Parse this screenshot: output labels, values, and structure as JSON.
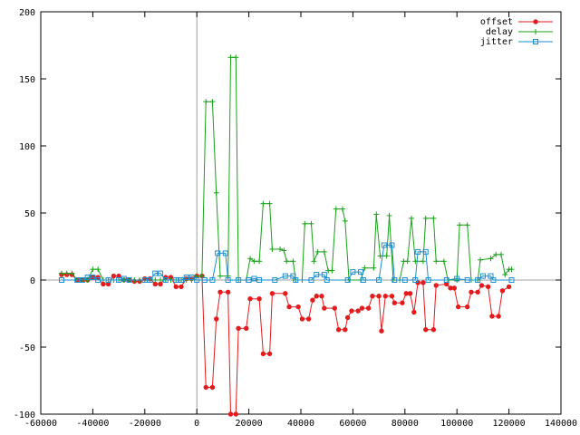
{
  "chart_data": {
    "type": "line",
    "xlim": [
      -60000,
      140000
    ],
    "ylim": [
      -100,
      200
    ],
    "x_ticks": [
      -60000,
      -40000,
      -20000,
      0,
      20000,
      40000,
      60000,
      80000,
      100000,
      120000,
      140000
    ],
    "y_ticks": [
      -100,
      -50,
      0,
      50,
      100,
      150,
      200
    ],
    "x_tick_labels": [
      "-60000",
      "-40000",
      "-20000",
      "0",
      "20000",
      "40000",
      "60000",
      "80000",
      "100000",
      "120000",
      "140000"
    ],
    "y_tick_labels": [
      "-100",
      "-50",
      "0",
      "50",
      "100",
      "150",
      "200"
    ],
    "zero_lines": true,
    "legend_position": "top-right",
    "series": [
      {
        "name": "offset",
        "color": "#e41a1c",
        "marker": "dot",
        "points": [
          [
            -52000,
            4
          ],
          [
            -50000,
            4
          ],
          [
            -48000,
            4
          ],
          [
            -46000,
            0
          ],
          [
            -44000,
            0
          ],
          [
            -42000,
            0
          ],
          [
            -40000,
            2
          ],
          [
            -38000,
            2
          ],
          [
            -36000,
            -3
          ],
          [
            -34000,
            -3
          ],
          [
            -32000,
            3
          ],
          [
            -30000,
            3
          ],
          [
            -28000,
            0
          ],
          [
            -26000,
            0
          ],
          [
            -24000,
            -1
          ],
          [
            -22000,
            -1
          ],
          [
            -20000,
            1
          ],
          [
            -18000,
            1
          ],
          [
            -16000,
            -3
          ],
          [
            -14000,
            -3
          ],
          [
            -12000,
            2
          ],
          [
            -10000,
            2
          ],
          [
            -8000,
            -5
          ],
          [
            -6000,
            -5
          ],
          [
            -4000,
            1
          ],
          [
            -2000,
            1
          ],
          [
            0,
            3
          ],
          [
            2000,
            3
          ],
          [
            3500,
            -80
          ],
          [
            6000,
            -80
          ],
          [
            7500,
            -29
          ],
          [
            9000,
            -9
          ],
          [
            12000,
            -9
          ],
          [
            13000,
            -100
          ],
          [
            15000,
            -100
          ],
          [
            16000,
            -36
          ],
          [
            19000,
            -36
          ],
          [
            20500,
            -14
          ],
          [
            24000,
            -14
          ],
          [
            25500,
            -55
          ],
          [
            28000,
            -55
          ],
          [
            29000,
            -10
          ],
          [
            34000,
            -10
          ],
          [
            35500,
            -20
          ],
          [
            39000,
            -20
          ],
          [
            40500,
            -29
          ],
          [
            43000,
            -29
          ],
          [
            44500,
            -15
          ],
          [
            46000,
            -12
          ],
          [
            48000,
            -12
          ],
          [
            49000,
            -21
          ],
          [
            53000,
            -21
          ],
          [
            54500,
            -37
          ],
          [
            57000,
            -37
          ],
          [
            58000,
            -28
          ],
          [
            59500,
            -23
          ],
          [
            62000,
            -23
          ],
          [
            63500,
            -21
          ],
          [
            66000,
            -21
          ],
          [
            67500,
            -12
          ],
          [
            70000,
            -12
          ],
          [
            71000,
            -38
          ],
          [
            72500,
            -12
          ],
          [
            75000,
            -12
          ],
          [
            76000,
            -17
          ],
          [
            79000,
            -17
          ],
          [
            80500,
            -10
          ],
          [
            82000,
            -10
          ],
          [
            83500,
            -24
          ],
          [
            85000,
            -2
          ],
          [
            87000,
            -2
          ],
          [
            88000,
            -37
          ],
          [
            91000,
            -37
          ],
          [
            92000,
            -4
          ],
          [
            96000,
            -3
          ],
          [
            97500,
            -6
          ],
          [
            99000,
            -6
          ],
          [
            100500,
            -20
          ],
          [
            104000,
            -20
          ],
          [
            105500,
            -9
          ],
          [
            108000,
            -9
          ],
          [
            109500,
            -4
          ],
          [
            112000,
            -5
          ],
          [
            113500,
            -27
          ],
          [
            116000,
            -27
          ],
          [
            117500,
            -8
          ],
          [
            120000,
            -5
          ]
        ]
      },
      {
        "name": "delay",
        "color": "#1aa11a",
        "marker": "plus",
        "points": [
          [
            -52000,
            5
          ],
          [
            -50000,
            5
          ],
          [
            -48000,
            5
          ],
          [
            -46000,
            0
          ],
          [
            -44000,
            0
          ],
          [
            -42000,
            0
          ],
          [
            -40000,
            8
          ],
          [
            -38000,
            8
          ],
          [
            -36000,
            0
          ],
          [
            -34000,
            0
          ],
          [
            -32000,
            0
          ],
          [
            -30000,
            0
          ],
          [
            -28000,
            0
          ],
          [
            -26000,
            0
          ],
          [
            -24000,
            0
          ],
          [
            -22000,
            0
          ],
          [
            -20000,
            0
          ],
          [
            -18000,
            0
          ],
          [
            -16000,
            0
          ],
          [
            -14000,
            0
          ],
          [
            -12000,
            0
          ],
          [
            -10000,
            0
          ],
          [
            -8000,
            0
          ],
          [
            -6000,
            0
          ],
          [
            -4000,
            0
          ],
          [
            -2000,
            0
          ],
          [
            0,
            3
          ],
          [
            2000,
            3
          ],
          [
            3500,
            133
          ],
          [
            6000,
            133
          ],
          [
            7500,
            65
          ],
          [
            9000,
            3
          ],
          [
            12000,
            3
          ],
          [
            13000,
            166
          ],
          [
            15000,
            166
          ],
          [
            16000,
            0
          ],
          [
            19000,
            0
          ],
          [
            20500,
            16
          ],
          [
            22000,
            14
          ],
          [
            24000,
            14
          ],
          [
            25500,
            57
          ],
          [
            28000,
            57
          ],
          [
            29000,
            23
          ],
          [
            32000,
            23
          ],
          [
            33500,
            22
          ],
          [
            34500,
            14
          ],
          [
            37000,
            14
          ],
          [
            38000,
            0
          ],
          [
            40500,
            0
          ],
          [
            41500,
            42
          ],
          [
            44000,
            42
          ],
          [
            45000,
            14
          ],
          [
            46500,
            21
          ],
          [
            49000,
            21
          ],
          [
            50500,
            7
          ],
          [
            52000,
            7
          ],
          [
            53500,
            53
          ],
          [
            56000,
            53
          ],
          [
            57000,
            44
          ],
          [
            58500,
            0
          ],
          [
            63000,
            0
          ],
          [
            64500,
            9
          ],
          [
            68000,
            9
          ],
          [
            69000,
            49
          ],
          [
            70500,
            18
          ],
          [
            73000,
            18
          ],
          [
            74000,
            48
          ],
          [
            75500,
            0
          ],
          [
            78000,
            0
          ],
          [
            79500,
            14
          ],
          [
            81000,
            14
          ],
          [
            82500,
            46
          ],
          [
            84000,
            14
          ],
          [
            87000,
            14
          ],
          [
            88000,
            46
          ],
          [
            91000,
            46
          ],
          [
            92000,
            14
          ],
          [
            95000,
            14
          ],
          [
            96500,
            0
          ],
          [
            100000,
            0
          ],
          [
            101000,
            41
          ],
          [
            104000,
            41
          ],
          [
            105500,
            0
          ],
          [
            108000,
            0
          ],
          [
            109000,
            15
          ],
          [
            113000,
            16
          ],
          [
            115000,
            19
          ],
          [
            117000,
            19
          ],
          [
            118500,
            4
          ],
          [
            120000,
            8
          ],
          [
            121000,
            8
          ]
        ]
      },
      {
        "name": "jitter",
        "color": "#1a8fd0",
        "marker": "square",
        "points": [
          [
            -52000,
            0
          ],
          [
            -46000,
            0
          ],
          [
            -44000,
            0
          ],
          [
            -42000,
            2
          ],
          [
            -40000,
            2
          ],
          [
            -38000,
            0
          ],
          [
            -34000,
            0
          ],
          [
            -30000,
            0
          ],
          [
            -28000,
            1
          ],
          [
            -26000,
            0
          ],
          [
            -20000,
            0
          ],
          [
            -18000,
            0
          ],
          [
            -16000,
            5
          ],
          [
            -14000,
            5
          ],
          [
            -12000,
            0
          ],
          [
            -8000,
            0
          ],
          [
            -6000,
            0
          ],
          [
            -4000,
            2
          ],
          [
            -2000,
            2
          ],
          [
            0,
            0
          ],
          [
            3000,
            0
          ],
          [
            6000,
            0
          ],
          [
            8000,
            20
          ],
          [
            11000,
            20
          ],
          [
            12000,
            0
          ],
          [
            16000,
            0
          ],
          [
            20000,
            0
          ],
          [
            22000,
            1
          ],
          [
            24000,
            0
          ],
          [
            30000,
            0
          ],
          [
            34000,
            3
          ],
          [
            37000,
            3
          ],
          [
            38000,
            0
          ],
          [
            44000,
            0
          ],
          [
            46000,
            4
          ],
          [
            49000,
            4
          ],
          [
            50000,
            0
          ],
          [
            58000,
            0
          ],
          [
            60000,
            6
          ],
          [
            63000,
            6
          ],
          [
            64000,
            0
          ],
          [
            70000,
            0
          ],
          [
            72000,
            26
          ],
          [
            75000,
            26
          ],
          [
            76000,
            0
          ],
          [
            80000,
            0
          ],
          [
            84000,
            0
          ],
          [
            85000,
            21
          ],
          [
            88000,
            21
          ],
          [
            89000,
            0
          ],
          [
            96000,
            0
          ],
          [
            100000,
            1
          ],
          [
            104000,
            0
          ],
          [
            108000,
            0
          ],
          [
            110000,
            3
          ],
          [
            113000,
            3
          ],
          [
            114000,
            0
          ],
          [
            121000,
            0
          ]
        ]
      }
    ]
  }
}
